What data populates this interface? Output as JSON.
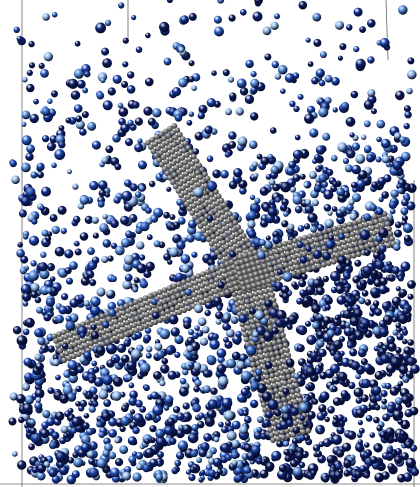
{
  "scene": {
    "subject": "molecular-dynamics-particle-render",
    "colors": {
      "background": "#ffffff",
      "frame_line": "#555555",
      "lattice_base": "#6e6e6e",
      "lattice_highlight": "#cfcfcf",
      "lattice_shadow": "#3a3a3a",
      "particle_palette": [
        "#0a1650",
        "#0d2375",
        "#11308f",
        "#1a45b0",
        "#2e63c8",
        "#5a8fdb",
        "#9cc2ee",
        "#0b1a5c"
      ]
    }
  }
}
